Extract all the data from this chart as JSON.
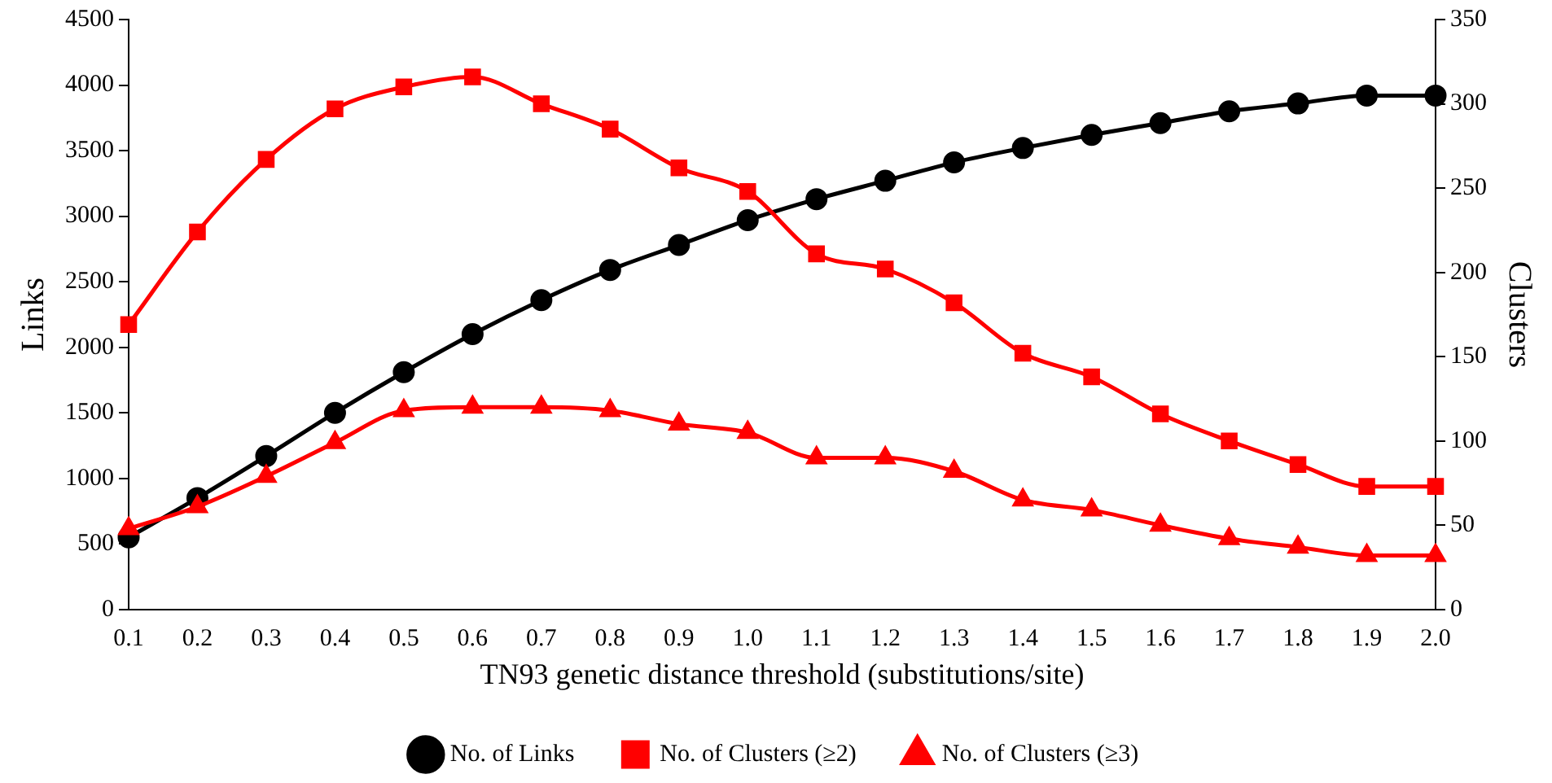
{
  "chart_data": {
    "type": "line",
    "xlabel": "TN93 genetic distance threshold (substitutions/site)",
    "ylabel": "Links",
    "y2label": "Clusters",
    "categories": [
      "0.1",
      "0.2",
      "0.3",
      "0.4",
      "0.5",
      "0.6",
      "0.7",
      "0.8",
      "0.9",
      "1.0",
      "1.1",
      "1.2",
      "1.3",
      "1.4",
      "1.5",
      "1.6",
      "1.7",
      "1.8",
      "1.9",
      "2.0"
    ],
    "series": [
      {
        "name": "No. of Links",
        "color": "#000000",
        "marker": "circle",
        "values": [
          550,
          850,
          1170,
          1500,
          1810,
          2100,
          2360,
          2590,
          2780,
          2970,
          3130,
          3270,
          3410,
          3520,
          3620,
          3710,
          3800,
          3860,
          3920,
          3920
        ]
      },
      {
        "name": "No. of Clusters (≥2)",
        "color": "#ff0000",
        "marker": "square",
        "axis": "y2",
        "values": [
          169,
          224,
          267,
          297,
          310,
          316,
          300,
          285,
          262,
          248,
          211,
          202,
          182,
          152,
          138,
          116,
          100,
          86,
          73,
          73
        ]
      },
      {
        "name": "No. of Clusters (≥3)",
        "color": "#ff0000",
        "marker": "triangle",
        "axis": "y2",
        "values": [
          48,
          61,
          79,
          99,
          118,
          120,
          120,
          118,
          110,
          105,
          90,
          90,
          82,
          65,
          59,
          50,
          42,
          37,
          32,
          32
        ]
      }
    ],
    "ylim": [
      0,
      4500
    ],
    "yticks": [
      0,
      500,
      1000,
      1500,
      2000,
      2500,
      3000,
      3500,
      4000,
      4500
    ],
    "y2lim": [
      0,
      350
    ],
    "y2ticks": [
      0,
      50,
      100,
      150,
      200,
      250,
      300,
      350
    ],
    "grid": false,
    "legend": "bottom",
    "line_style": "solid"
  }
}
